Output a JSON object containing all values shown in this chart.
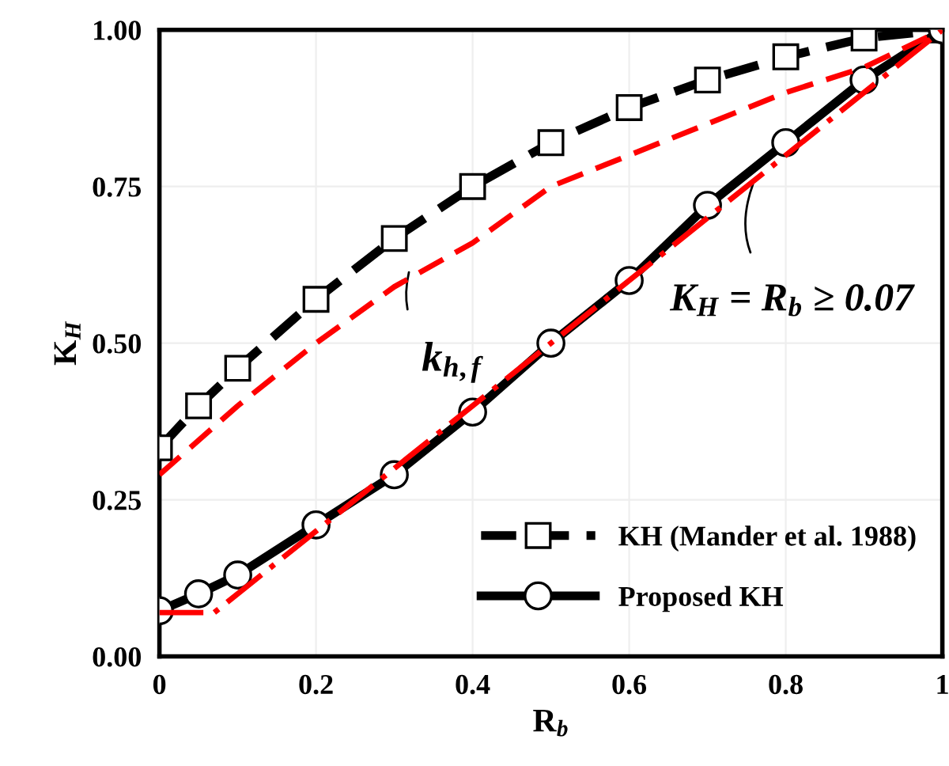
{
  "chart_data": {
    "type": "line",
    "xlabel": "R$_{b}$",
    "ylabel": "K$_{H}$",
    "x": [
      0,
      0.05,
      0.1,
      0.2,
      0.3,
      0.4,
      0.5,
      0.6,
      0.7,
      0.8,
      0.9,
      1
    ],
    "series": [
      {
        "name": "KH (Mander et al. 1988)",
        "color": "#000000",
        "marker": "square",
        "line_style": "dashed",
        "values": [
          0.333,
          0.4,
          0.46,
          0.57,
          0.667,
          0.75,
          0.82,
          0.876,
          0.92,
          0.957,
          0.987,
          1.0
        ]
      },
      {
        "name": "Proposed KH",
        "color": "#000000",
        "marker": "circle",
        "line_style": "solid",
        "values": [
          0.073,
          0.1,
          0.13,
          0.21,
          0.29,
          0.39,
          0.5,
          0.6,
          0.72,
          0.82,
          0.92,
          1.0
        ]
      },
      {
        "color": "#ff0000",
        "marker": "none",
        "line_style": "dashed",
        "x": [
          0,
          0.1,
          0.2,
          0.3,
          0.4,
          0.5,
          0.6,
          0.7,
          0.8,
          0.9,
          1
        ],
        "values": [
          0.29,
          0.4,
          0.5,
          0.59,
          0.66,
          0.75,
          0.8,
          0.85,
          0.9,
          0.94,
          1.0
        ]
      },
      {
        "color": "#ff0000",
        "marker": "none",
        "line_style": "dashdot",
        "x": [
          0,
          0.07,
          1
        ],
        "values": [
          0.07,
          0.07,
          1.0
        ]
      }
    ],
    "xlim": [
      0,
      1
    ],
    "xticks": [
      0,
      0.2,
      0.4,
      0.6,
      0.8,
      1
    ],
    "ylim": [
      0,
      1
    ],
    "yticks": [
      {
        "value": 0,
        "label": "0.00"
      },
      {
        "value": 0.25,
        "label": "0.25"
      },
      {
        "value": 0.5,
        "label": "0.50"
      },
      {
        "value": 0.75,
        "label": "0.75"
      },
      {
        "value": 1,
        "label": "1.00"
      }
    ],
    "grid": true,
    "legend": "bottom right",
    "annotations": [
      {
        "text": "k$_{h,f}$",
        "x": 0.32,
        "y": 0.62
      },
      {
        "text": "K$_{H}$ = R$_{b}$ ≥ 0.07",
        "x": 0.76,
        "y": 0.76
      }
    ]
  }
}
